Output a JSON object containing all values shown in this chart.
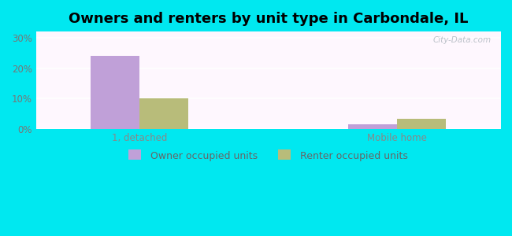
{
  "title": "Owners and renters by unit type in Carbondale, IL",
  "categories": [
    "1, detached",
    "Mobile home"
  ],
  "owner_values": [
    24.0,
    1.5
  ],
  "renter_values": [
    10.0,
    3.5
  ],
  "owner_color": "#c0a0d8",
  "renter_color": "#b8bc7a",
  "cyan_bg": "#00e8f0",
  "yticks": [
    0,
    10,
    20,
    30
  ],
  "ylim": [
    0,
    32
  ],
  "bar_width": 0.38,
  "legend_labels": [
    "Owner occupied units",
    "Renter occupied units"
  ],
  "watermark": "City-Data.com",
  "title_fontsize": 13,
  "tick_fontsize": 8.5,
  "legend_fontsize": 9
}
